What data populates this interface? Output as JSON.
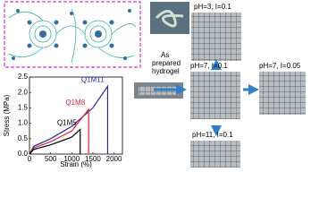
{
  "chart_data": {
    "type": "line",
    "x_label": "Strain (%)",
    "y_label": "Stress (MPa)",
    "xlim": [
      0,
      2200
    ],
    "ylim": [
      0,
      2.5
    ],
    "xticks": [
      0,
      500,
      1000,
      1500,
      2000
    ],
    "yticks": [
      {
        "value": 0,
        "label": "0.0"
      },
      {
        "value": 0.5,
        "label": "0.5"
      },
      {
        "value": 1,
        "label": "1.0"
      },
      {
        "value": 1.5,
        "label": "1.5"
      },
      {
        "value": 2,
        "label": "2.0"
      },
      {
        "value": 2.5,
        "label": "2.5"
      }
    ],
    "series": [
      {
        "name": "Q1M11",
        "color": "#2a2aa0",
        "x": [
          0,
          100,
          500,
          1000,
          1500,
          1850,
          1850
        ],
        "values": [
          0,
          0.25,
          0.5,
          0.9,
          1.5,
          2.2,
          0
        ]
      },
      {
        "name": "Q1M8",
        "color": "#e0203a",
        "x": [
          0,
          100,
          500,
          1000,
          1400,
          1400
        ],
        "values": [
          0,
          0.2,
          0.4,
          0.75,
          1.45,
          0
        ]
      },
      {
        "name": "Q1M5",
        "color": "#000000",
        "x": [
          0,
          100,
          500,
          1000,
          1200,
          1200
        ],
        "values": [
          0,
          0.15,
          0.3,
          0.55,
          0.8,
          0
        ]
      }
    ]
  },
  "photo_label": [
    "As",
    "prepared",
    "hydrogel"
  ],
  "conditions": [
    "pH=3, I=0.1",
    "pH=7, I=0.1",
    "pH=7, I=0.05",
    "pH=11, I=0.1"
  ]
}
